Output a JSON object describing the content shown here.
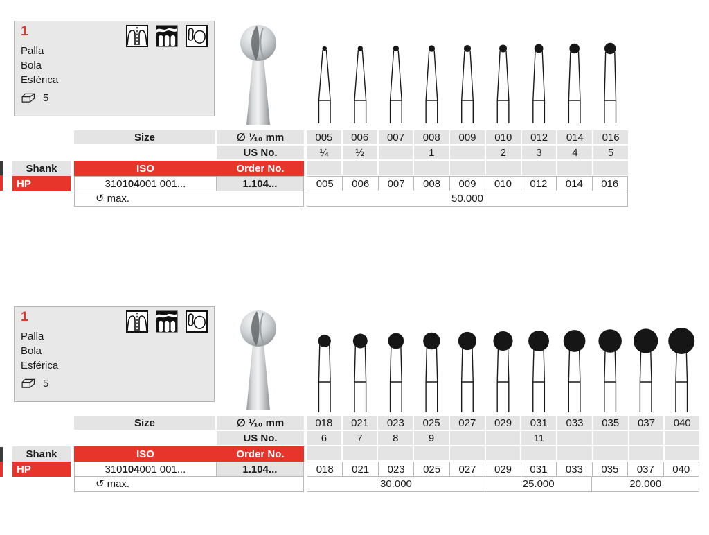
{
  "accent_red": "#e8352c",
  "cell_gray": "#e4e4e4",
  "rotation_icon": "↺",
  "sections": [
    {
      "figure_number": "1",
      "names": [
        "Palla",
        "Bola",
        "Esférica"
      ],
      "pack_quantity": "5",
      "table": {
        "size_label": "Size",
        "diameter_label": "∅ ¹⁄₁₀ mm",
        "us_no_label": "US No.",
        "iso_label": "ISO",
        "order_no_label": "Order No.",
        "shank_label": "Shank",
        "shank_value": "HP",
        "iso_value": {
          "prefix": "310 ",
          "bold": "104",
          "suffix": " 001 001..."
        },
        "order_no_value": "1.104...",
        "max_rotation_label": "max.",
        "sizes": [
          "005",
          "006",
          "007",
          "008",
          "009",
          "010",
          "012",
          "014",
          "016"
        ],
        "us_numbers": [
          "¼",
          "½",
          "",
          "1",
          "",
          "2",
          "3",
          "4",
          "5"
        ],
        "hp_sizes": [
          "005",
          "006",
          "007",
          "008",
          "009",
          "010",
          "012",
          "014",
          "016"
        ],
        "speed_groups": [
          {
            "label": "50.000",
            "span": 9
          }
        ]
      }
    },
    {
      "figure_number": "1",
      "names": [
        "Palla",
        "Bola",
        "Esférica"
      ],
      "pack_quantity": "5",
      "table": {
        "size_label": "Size",
        "diameter_label": "∅ ¹⁄₁₀ mm",
        "us_no_label": "US No.",
        "iso_label": "ISO",
        "order_no_label": "Order No.",
        "shank_label": "Shank",
        "shank_value": "HP",
        "iso_value": {
          "prefix": "310 ",
          "bold": "104",
          "suffix": " 001 001..."
        },
        "order_no_value": "1.104...",
        "max_rotation_label": "max.",
        "sizes": [
          "018",
          "021",
          "023",
          "025",
          "027",
          "029",
          "031",
          "033",
          "035",
          "037",
          "040"
        ],
        "us_numbers": [
          "6",
          "7",
          "8",
          "9",
          "",
          "",
          "11",
          "",
          "",
          "",
          ""
        ],
        "hp_sizes": [
          "018",
          "021",
          "023",
          "025",
          "027",
          "029",
          "031",
          "033",
          "035",
          "037",
          "040"
        ],
        "speed_groups": [
          {
            "label": "30.000",
            "span": 5
          },
          {
            "label": "25.000",
            "span": 3
          },
          {
            "label": "20.000",
            "span": 3
          }
        ]
      }
    }
  ]
}
